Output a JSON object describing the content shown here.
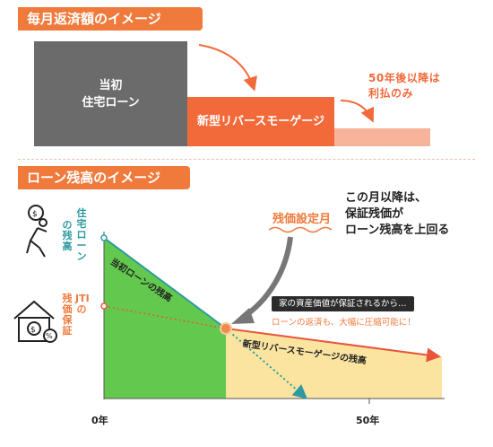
{
  "section1": {
    "title": "毎月返済額のイメージ",
    "initial_loan_line1": "当初",
    "initial_loan_line2": "住宅ローン",
    "reverse_mortgage": "新型リバースモーゲージ",
    "after50_line1": "50年後以降は",
    "after50_line2": "利払のみ"
  },
  "section2": {
    "title": "ローン残高のイメージ",
    "mortgage_label_main": "住宅ローン",
    "mortgage_label_sub": "の残高",
    "jti_label_main": "JTIの",
    "jti_label_sub": "残価保証",
    "initial_balance_label": "当初ローンの残高",
    "reverse_balance_label": "新型リバースモーゲージの残高",
    "setting_month": "残価設定月",
    "after_note_line1": "この月以降は、",
    "after_note_line2": "保証残価が",
    "after_note_line3": "ローン残高を上回る",
    "callout": "家の資産価値が保証されるから…",
    "callout_sub": "ローンの返済も、大幅に圧縮可能に！",
    "x_start": "0年",
    "x_end": "50年"
  },
  "icons": [
    "person-carrying-moneybag-icon",
    "house-with-money-icon"
  ],
  "colors": {
    "accent": "#f07a3c",
    "initial_loan": "#6b6b6b",
    "reverse_mortgage": "#f26a3a",
    "interest_only": "#f6b49a",
    "initial_area": "#63c94e",
    "reverse_area": "#fbe4a0",
    "mortgage_line": "#2c9aa0",
    "guarantee_line": "#e8553a"
  }
}
